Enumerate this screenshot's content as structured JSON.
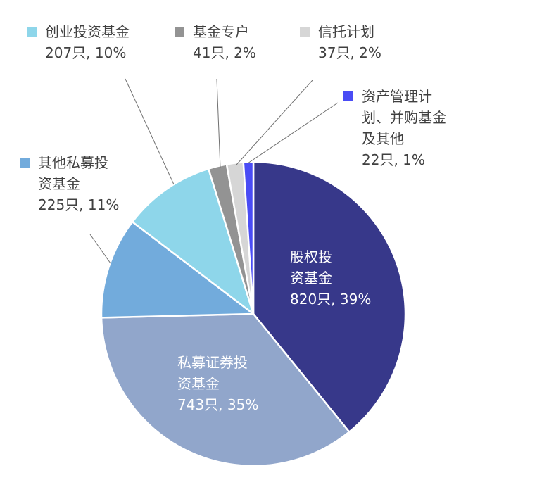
{
  "chart_data": {
    "type": "pie",
    "title": "",
    "slices": [
      {
        "name_lines": [
          "股权投",
          "资基金"
        ],
        "detail": "820只, 39%",
        "count": 820,
        "percent": 39,
        "color": "#37388a"
      },
      {
        "name_lines": [
          "私募证券投",
          "资基金"
        ],
        "detail": "743只, 35%",
        "count": 743,
        "percent": 35,
        "color": "#91a6cb"
      },
      {
        "name_lines": [
          "其他私募投",
          "资基金"
        ],
        "detail": "225只, 11%",
        "count": 225,
        "percent": 11,
        "color": "#72abdc"
      },
      {
        "name_lines": [
          "创业投资基金"
        ],
        "detail": "207只, 10%",
        "count": 207,
        "percent": 10,
        "color": "#8ed6ea"
      },
      {
        "name_lines": [
          "基金专户"
        ],
        "detail": "41只, 2%",
        "count": 41,
        "percent": 2,
        "color": "#939393"
      },
      {
        "name_lines": [
          "信托计划"
        ],
        "detail": "37只, 2%",
        "count": 37,
        "percent": 2,
        "color": "#d6d6d6"
      },
      {
        "name_lines": [
          "资产管理计",
          "划、并购基金",
          "及其他"
        ],
        "detail": "22只, 1%",
        "count": 22,
        "percent": 1,
        "color": "#4a4cf5"
      }
    ]
  }
}
